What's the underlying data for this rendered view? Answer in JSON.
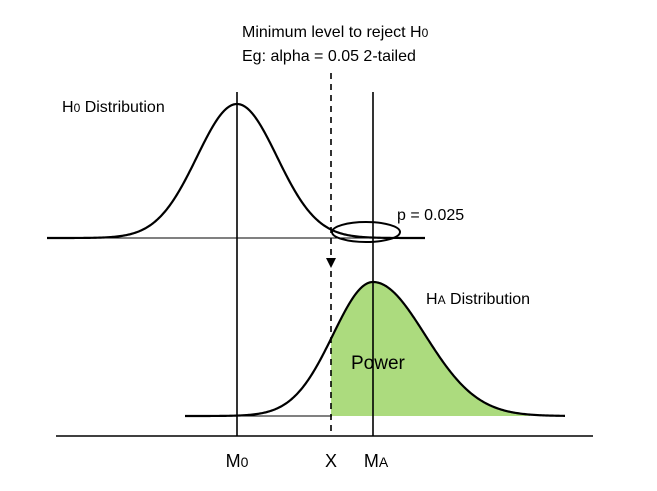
{
  "annotation": {
    "line1_prefix": "Minimum level to reject H",
    "line1_sub": "0",
    "line2": "Eg: alpha = 0.05 2-tailed"
  },
  "h0_label": {
    "main": "H",
    "sub": "0",
    "rest": " Distribution"
  },
  "ha_label": {
    "main": "H",
    "sub": "A",
    "rest": " Distribution"
  },
  "p_label": "p = 0.025",
  "power_label": "Power",
  "axis": {
    "m0": {
      "main": "M",
      "sub": "0"
    },
    "x": "X",
    "ma": {
      "main": "M",
      "sub": "A"
    }
  },
  "colors": {
    "power_fill": "#acdb7e",
    "stroke": "#000000"
  }
}
